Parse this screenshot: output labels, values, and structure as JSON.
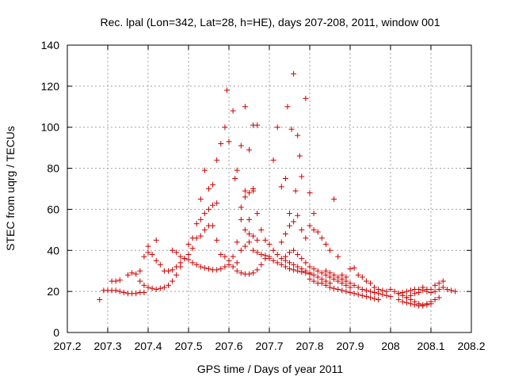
{
  "chart_data": {
    "type": "scatter",
    "title": "Rec. lpal (Lon=342, Lat=28, h=HE), days 207-208, 2011, window 001",
    "xlabel": "GPS time / Days of year 2011",
    "ylabel": "STEC from uqrg / TECUs",
    "xlim": [
      207.2,
      208.2
    ],
    "ylim": [
      0,
      140
    ],
    "xticks": [
      "207.2",
      "207.3",
      "207.4",
      "207.5",
      "207.6",
      "207.7",
      "207.8",
      "207.9",
      "208",
      "208.1",
      "208.2"
    ],
    "yticks": [
      "0",
      "20",
      "40",
      "60",
      "80",
      "100",
      "120",
      "140"
    ],
    "grid": true,
    "marker": "plus",
    "color": "#cc0000",
    "points": [
      [
        207.28,
        16
      ],
      [
        207.29,
        20.5
      ],
      [
        207.3,
        20.5
      ],
      [
        207.31,
        20.5
      ],
      [
        207.32,
        20.5
      ],
      [
        207.33,
        20
      ],
      [
        207.34,
        19.5
      ],
      [
        207.35,
        19
      ],
      [
        207.36,
        19
      ],
      [
        207.37,
        19
      ],
      [
        207.38,
        19.5
      ],
      [
        207.39,
        19.5
      ],
      [
        207.31,
        25
      ],
      [
        207.32,
        25
      ],
      [
        207.33,
        25.5
      ],
      [
        207.35,
        28
      ],
      [
        207.36,
        29
      ],
      [
        207.37,
        28.5
      ],
      [
        207.38,
        25
      ],
      [
        207.39,
        23
      ],
      [
        207.4,
        22
      ],
      [
        207.41,
        21.5
      ],
      [
        207.42,
        21
      ],
      [
        207.43,
        21.5
      ],
      [
        207.44,
        22
      ],
      [
        207.45,
        23
      ],
      [
        207.46,
        25
      ],
      [
        207.47,
        28
      ],
      [
        207.48,
        32
      ],
      [
        207.38,
        30
      ],
      [
        207.39,
        37
      ],
      [
        207.4,
        39
      ],
      [
        207.4,
        42
      ],
      [
        207.41,
        38
      ],
      [
        207.42,
        35
      ],
      [
        207.43,
        33
      ],
      [
        207.44,
        30
      ],
      [
        207.45,
        30
      ],
      [
        207.46,
        30.5
      ],
      [
        207.47,
        32
      ],
      [
        207.48,
        34
      ],
      [
        207.49,
        36
      ],
      [
        207.5,
        38
      ],
      [
        207.51,
        41
      ],
      [
        207.42,
        45
      ],
      [
        207.46,
        40
      ],
      [
        207.47,
        39
      ],
      [
        207.48,
        37
      ],
      [
        207.49,
        36
      ],
      [
        207.5,
        35.5
      ],
      [
        207.51,
        34
      ],
      [
        207.52,
        33
      ],
      [
        207.53,
        32
      ],
      [
        207.54,
        31.5
      ],
      [
        207.55,
        31
      ],
      [
        207.56,
        30.5
      ],
      [
        207.57,
        30.5
      ],
      [
        207.58,
        31
      ],
      [
        207.59,
        32
      ],
      [
        207.6,
        33
      ],
      [
        207.5,
        43
      ],
      [
        207.51,
        46
      ],
      [
        207.52,
        46
      ],
      [
        207.53,
        47
      ],
      [
        207.52,
        53
      ],
      [
        207.53,
        55
      ],
      [
        207.54,
        58
      ],
      [
        207.55,
        60
      ],
      [
        207.56,
        62
      ],
      [
        207.57,
        63
      ],
      [
        207.54,
        50
      ],
      [
        207.55,
        52
      ],
      [
        207.56,
        52
      ],
      [
        207.57,
        45
      ],
      [
        207.58,
        38
      ],
      [
        207.53,
        65
      ],
      [
        207.54,
        79
      ],
      [
        207.55,
        70
      ],
      [
        207.56,
        72
      ],
      [
        207.57,
        84
      ],
      [
        207.58,
        92
      ],
      [
        207.59,
        100
      ],
      [
        207.595,
        118
      ],
      [
        207.6,
        93
      ],
      [
        207.61,
        108
      ],
      [
        207.615,
        75
      ],
      [
        207.62,
        79
      ],
      [
        207.63,
        91
      ],
      [
        207.64,
        110
      ],
      [
        207.65,
        89
      ],
      [
        207.66,
        101
      ],
      [
        207.67,
        101
      ],
      [
        207.59,
        37
      ],
      [
        207.6,
        35
      ],
      [
        207.61,
        32
      ],
      [
        207.62,
        30
      ],
      [
        207.63,
        29
      ],
      [
        207.64,
        28.5
      ],
      [
        207.65,
        28.5
      ],
      [
        207.66,
        29
      ],
      [
        207.67,
        30.5
      ],
      [
        207.68,
        33
      ],
      [
        207.69,
        36
      ],
      [
        207.62,
        44
      ],
      [
        207.63,
        55
      ],
      [
        207.63,
        61
      ],
      [
        207.64,
        66
      ],
      [
        207.64,
        69
      ],
      [
        207.65,
        68
      ],
      [
        207.66,
        69
      ],
      [
        207.66,
        70
      ],
      [
        207.65,
        55
      ],
      [
        207.64,
        50
      ],
      [
        207.65,
        48
      ],
      [
        207.66,
        47
      ],
      [
        207.67,
        45
      ],
      [
        207.67,
        58
      ],
      [
        207.68,
        50
      ],
      [
        207.69,
        45
      ],
      [
        207.7,
        43
      ],
      [
        207.61,
        37
      ],
      [
        207.62,
        34
      ],
      [
        207.63,
        40
      ],
      [
        207.64,
        42
      ],
      [
        207.65,
        44
      ],
      [
        207.66,
        40
      ],
      [
        207.67,
        39
      ],
      [
        207.68,
        38
      ],
      [
        207.69,
        37.5
      ],
      [
        207.7,
        36
      ],
      [
        207.71,
        35
      ],
      [
        207.72,
        34
      ],
      [
        207.73,
        33
      ],
      [
        207.74,
        32
      ],
      [
        207.75,
        31
      ],
      [
        207.76,
        30.5
      ],
      [
        207.77,
        30
      ],
      [
        207.78,
        29.5
      ],
      [
        207.79,
        29
      ],
      [
        207.8,
        28.5
      ],
      [
        207.7,
        37
      ],
      [
        207.71,
        40
      ],
      [
        207.72,
        38
      ],
      [
        207.73,
        36
      ],
      [
        207.74,
        35
      ],
      [
        207.75,
        34
      ],
      [
        207.76,
        33
      ],
      [
        207.77,
        32
      ],
      [
        207.78,
        31
      ],
      [
        207.79,
        30
      ],
      [
        207.8,
        29
      ],
      [
        207.81,
        28
      ],
      [
        207.82,
        27
      ],
      [
        207.83,
        26
      ],
      [
        207.84,
        25
      ],
      [
        207.85,
        24
      ],
      [
        207.71,
        84
      ],
      [
        207.72,
        100
      ],
      [
        207.73,
        71
      ],
      [
        207.74,
        75
      ],
      [
        207.745,
        110
      ],
      [
        207.75,
        58
      ],
      [
        207.755,
        99
      ],
      [
        207.76,
        126
      ],
      [
        207.765,
        69
      ],
      [
        207.77,
        96
      ],
      [
        207.775,
        86
      ],
      [
        207.78,
        76
      ],
      [
        207.79,
        114
      ],
      [
        207.8,
        68
      ],
      [
        207.81,
        58
      ],
      [
        207.73,
        44
      ],
      [
        207.74,
        48
      ],
      [
        207.75,
        52
      ],
      [
        207.76,
        54
      ],
      [
        207.77,
        57
      ],
      [
        207.78,
        50
      ],
      [
        207.79,
        46
      ],
      [
        207.8,
        52
      ],
      [
        207.81,
        50
      ],
      [
        207.82,
        49
      ],
      [
        207.83,
        46
      ],
      [
        207.84,
        43
      ],
      [
        207.85,
        40
      ],
      [
        207.86,
        65
      ],
      [
        207.87,
        37
      ],
      [
        207.74,
        37
      ],
      [
        207.75,
        39
      ],
      [
        207.76,
        40
      ],
      [
        207.77,
        38
      ],
      [
        207.78,
        36
      ],
      [
        207.79,
        34
      ],
      [
        207.8,
        32
      ],
      [
        207.81,
        31
      ],
      [
        207.82,
        30
      ],
      [
        207.83,
        29
      ],
      [
        207.84,
        28
      ],
      [
        207.85,
        27
      ],
      [
        207.86,
        26
      ],
      [
        207.87,
        25
      ],
      [
        207.88,
        24
      ],
      [
        207.89,
        23
      ],
      [
        207.9,
        22
      ],
      [
        207.8,
        26
      ],
      [
        207.81,
        25
      ],
      [
        207.82,
        24
      ],
      [
        207.83,
        24
      ],
      [
        207.84,
        23
      ],
      [
        207.85,
        22
      ],
      [
        207.86,
        21.5
      ],
      [
        207.87,
        21
      ],
      [
        207.88,
        20.5
      ],
      [
        207.89,
        20
      ],
      [
        207.9,
        19.5
      ],
      [
        207.91,
        19
      ],
      [
        207.92,
        18.5
      ],
      [
        207.93,
        18
      ],
      [
        207.94,
        17.5
      ],
      [
        207.95,
        17
      ],
      [
        207.96,
        16.5
      ],
      [
        207.97,
        16
      ],
      [
        207.84,
        30
      ],
      [
        207.85,
        29
      ],
      [
        207.86,
        28
      ],
      [
        207.87,
        27
      ],
      [
        207.88,
        26
      ],
      [
        207.89,
        25
      ],
      [
        207.9,
        24
      ],
      [
        207.91,
        23
      ],
      [
        207.92,
        22
      ],
      [
        207.93,
        21
      ],
      [
        207.94,
        20.5
      ],
      [
        207.95,
        20
      ],
      [
        207.96,
        19.5
      ],
      [
        207.97,
        19
      ],
      [
        207.98,
        18.5
      ],
      [
        207.99,
        18
      ],
      [
        208.0,
        17.5
      ],
      [
        207.88,
        28
      ],
      [
        207.89,
        27
      ],
      [
        207.9,
        31
      ],
      [
        207.91,
        31.5
      ],
      [
        207.92,
        28
      ],
      [
        207.93,
        27
      ],
      [
        207.94,
        25
      ],
      [
        207.95,
        24
      ],
      [
        207.96,
        22
      ],
      [
        207.97,
        21
      ],
      [
        207.98,
        20.5
      ],
      [
        207.99,
        20
      ],
      [
        208.0,
        21
      ],
      [
        208.01,
        20
      ],
      [
        208.02,
        19
      ],
      [
        208.03,
        18
      ],
      [
        208.04,
        17
      ],
      [
        208.05,
        16
      ],
      [
        208.06,
        15
      ],
      [
        208.07,
        14
      ],
      [
        208.08,
        13.5
      ],
      [
        208.09,
        13.5
      ],
      [
        208.1,
        14
      ],
      [
        208.02,
        16
      ],
      [
        208.03,
        15
      ],
      [
        208.04,
        14.5
      ],
      [
        208.05,
        14
      ],
      [
        208.06,
        13.5
      ],
      [
        208.07,
        13
      ],
      [
        208.08,
        13
      ],
      [
        208.09,
        14
      ],
      [
        208.1,
        15
      ],
      [
        208.11,
        16
      ],
      [
        208.12,
        17
      ],
      [
        208.02,
        19
      ],
      [
        208.03,
        19.5
      ],
      [
        208.04,
        20
      ],
      [
        208.05,
        20.5
      ],
      [
        208.06,
        21
      ],
      [
        208.07,
        21
      ],
      [
        208.08,
        20.5
      ],
      [
        208.09,
        20
      ],
      [
        208.1,
        19.5
      ],
      [
        208.11,
        20
      ],
      [
        208.12,
        21
      ],
      [
        208.13,
        22
      ],
      [
        208.04,
        17
      ],
      [
        208.05,
        18
      ],
      [
        208.06,
        19
      ],
      [
        208.07,
        19.5
      ],
      [
        208.08,
        22
      ],
      [
        208.09,
        21
      ],
      [
        208.1,
        21
      ],
      [
        208.11,
        23
      ],
      [
        208.12,
        24
      ],
      [
        208.13,
        25
      ],
      [
        208.14,
        21
      ],
      [
        208.15,
        20.5
      ],
      [
        208.16,
        20
      ]
    ]
  }
}
